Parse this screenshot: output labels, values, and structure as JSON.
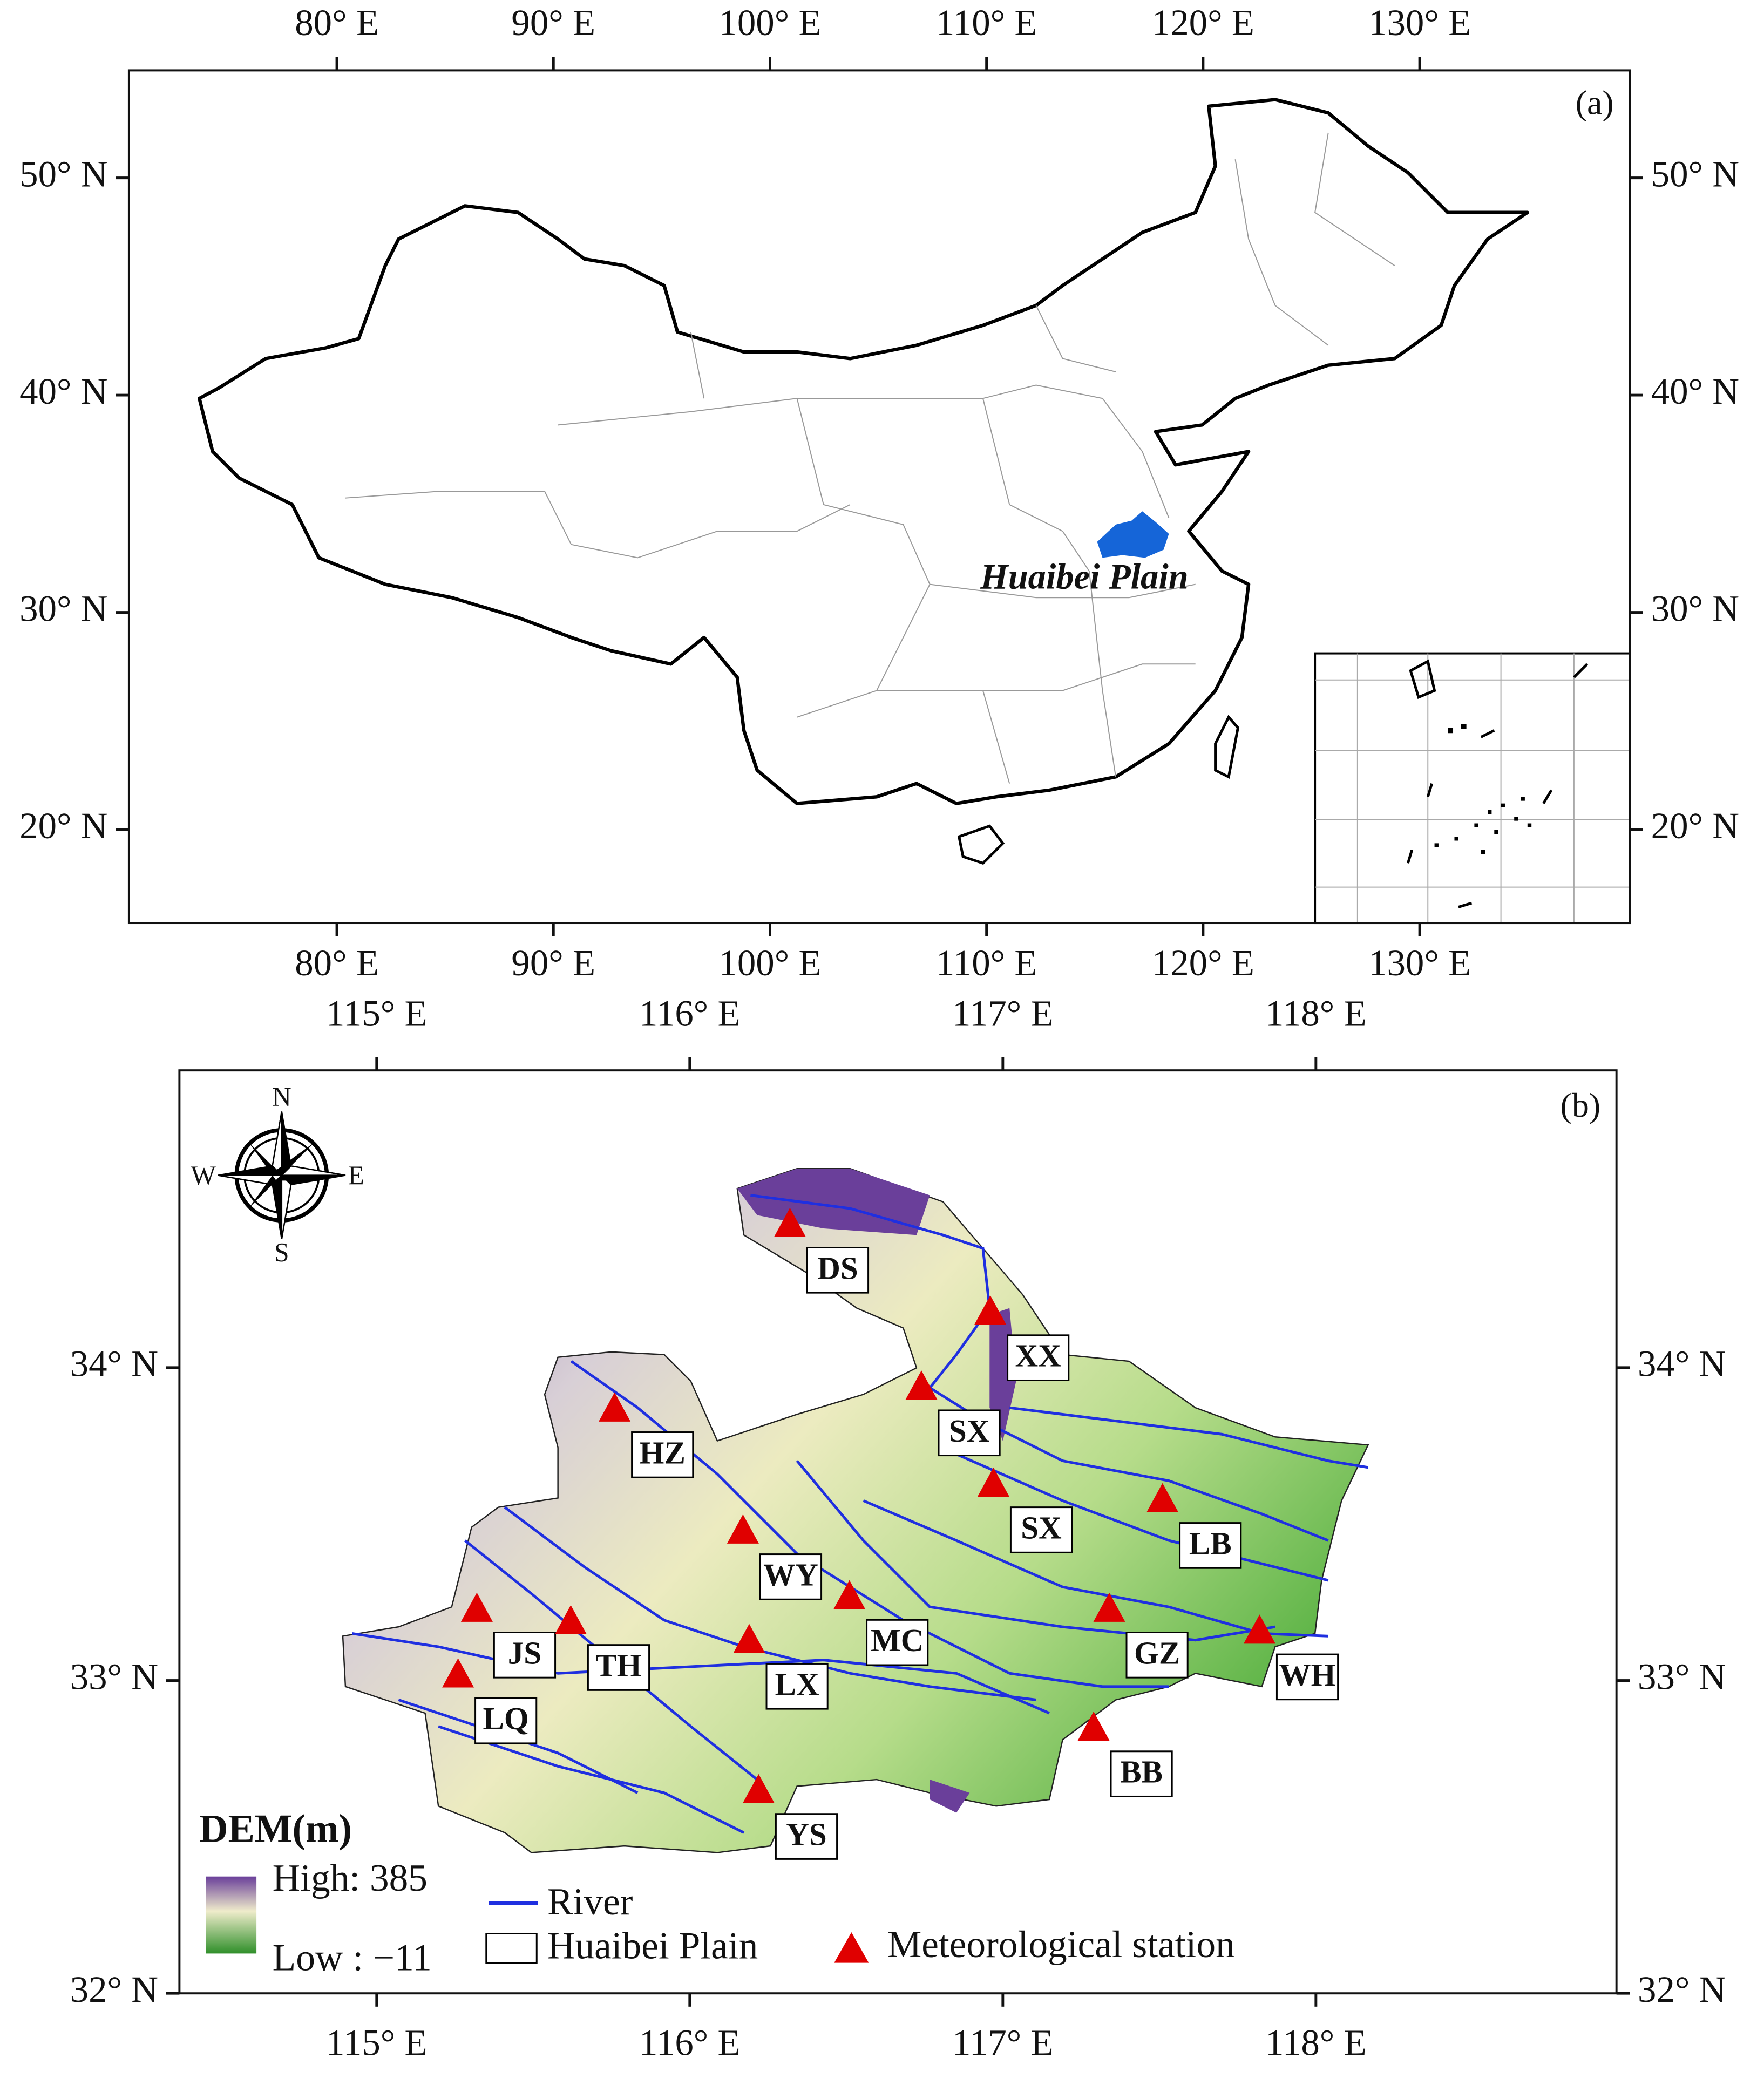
{
  "panel_a": {
    "label": "(a)",
    "annotation": "Huaibei Plain",
    "xlim": [
      70.4,
      139.7
    ],
    "ylim": [
      15.7,
      54.95
    ],
    "xticks": [
      {
        "value": 80,
        "label": "80° E"
      },
      {
        "value": 90,
        "label": "90° E"
      },
      {
        "value": 100,
        "label": "100° E"
      },
      {
        "value": 110,
        "label": "110° E"
      },
      {
        "value": 120,
        "label": "120° E"
      },
      {
        "value": 130,
        "label": "130° E"
      }
    ],
    "yticks": [
      {
        "value": 20,
        "label": "20° N"
      },
      {
        "value": 30,
        "label": "30° N"
      },
      {
        "value": 40,
        "label": "40° N"
      },
      {
        "value": 50,
        "label": "50° N"
      }
    ]
  },
  "panel_b": {
    "label": "(b)",
    "xlim": [
      114.37,
      118.96
    ],
    "ylim": [
      32,
      34.95
    ],
    "xticks": [
      {
        "value": 115,
        "label": "115° E"
      },
      {
        "value": 116,
        "label": "116° E"
      },
      {
        "value": 117,
        "label": "117° E"
      },
      {
        "value": 118,
        "label": "118° E"
      }
    ],
    "yticks": [
      {
        "value": 32,
        "label": "32° N"
      },
      {
        "value": 33,
        "label": "33° N"
      },
      {
        "value": 34,
        "label": "34° N"
      }
    ],
    "compass": {
      "n": "N",
      "s": "S",
      "w": "W",
      "e": "E"
    },
    "stations": [
      {
        "name": "DS",
        "lon": 116.32,
        "lat": 34.46
      },
      {
        "name": "XX",
        "lon": 116.96,
        "lat": 34.18
      },
      {
        "name": "SX",
        "lon": 116.74,
        "lat": 33.94
      },
      {
        "name": "HZ",
        "lon": 115.76,
        "lat": 33.87
      },
      {
        "name": "SX",
        "lon": 116.97,
        "lat": 33.63
      },
      {
        "name": "LB",
        "lon": 117.51,
        "lat": 33.58
      },
      {
        "name": "WY",
        "lon": 116.17,
        "lat": 33.48
      },
      {
        "name": "JS",
        "lon": 115.32,
        "lat": 33.23
      },
      {
        "name": "TH",
        "lon": 115.62,
        "lat": 33.19
      },
      {
        "name": "MC",
        "lon": 116.51,
        "lat": 33.27
      },
      {
        "name": "GZ",
        "lon": 117.34,
        "lat": 33.23
      },
      {
        "name": "WH",
        "lon": 117.82,
        "lat": 33.16
      },
      {
        "name": "LX",
        "lon": 116.19,
        "lat": 33.13
      },
      {
        "name": "LQ",
        "lon": 115.26,
        "lat": 33.02
      },
      {
        "name": "BB",
        "lon": 117.29,
        "lat": 32.85
      },
      {
        "name": "YS",
        "lon": 116.22,
        "lat": 32.65
      }
    ],
    "legend": {
      "title": "DEM(m)",
      "high": "High: 385",
      "low": "Low : −11",
      "river": "River",
      "boundary": "Huaibei Plain",
      "station": "Meteorological station"
    }
  }
}
